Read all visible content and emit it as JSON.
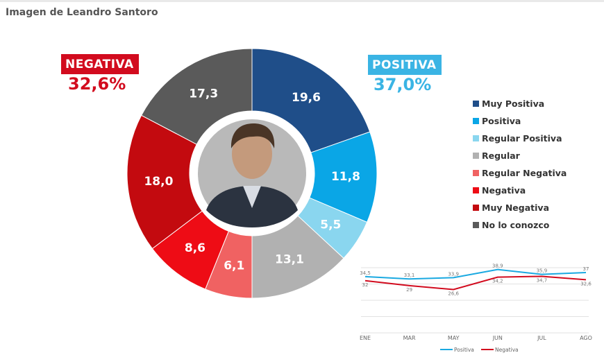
{
  "header": {
    "title": "Imagen de Leandro Santoro"
  },
  "summary": {
    "negative": {
      "label": "NEGATIVA",
      "value": "32,6%"
    },
    "positive": {
      "label": "POSITIVA",
      "value": "37,0%"
    }
  },
  "colors": {
    "muy_positiva": "#1f4e89",
    "positiva": "#0aa6e6",
    "regular_positiva": "#8ad6ef",
    "regular": "#b1b1b1",
    "regular_negativa": "#f06262",
    "negativa": "#ee0c15",
    "muy_negativa": "#c30a0f",
    "no_lo_conozco": "#5a5a5a",
    "photo_placeholder": "#b9b9b9"
  },
  "chart_data": [
    {
      "type": "pie",
      "variant": "donut",
      "slices": [
        {
          "name": "Muy Positiva",
          "value": 19.6,
          "label": "19,6",
          "color": "#1f4e89"
        },
        {
          "name": "Positiva",
          "value": 11.8,
          "label": "11,8",
          "color": "#0aa6e6"
        },
        {
          "name": "Regular Positiva",
          "value": 5.5,
          "label": "5,5",
          "color": "#8ad6ef"
        },
        {
          "name": "Regular",
          "value": 13.1,
          "label": "13,1",
          "color": "#b1b1b1"
        },
        {
          "name": "Regular Negativa",
          "value": 6.1,
          "label": "6,1",
          "color": "#f06262"
        },
        {
          "name": "Negativa",
          "value": 8.6,
          "label": "8,6",
          "color": "#ee0c15"
        },
        {
          "name": "Muy Negativa",
          "value": 18.0,
          "label": "18,0",
          "color": "#c30a0f"
        },
        {
          "name": "No lo conozco",
          "value": 17.3,
          "label": "17,3",
          "color": "#5a5a5a"
        }
      ],
      "legend": [
        "Muy Positiva",
        "Positiva",
        "Regular Positiva",
        "Regular",
        "Regular Negativa",
        "Negativa",
        "Muy Negativa",
        "No lo conozco"
      ],
      "center": "photo"
    },
    {
      "type": "line",
      "categories": [
        "ENE",
        "MAR",
        "MAY",
        "JUN",
        "JUL",
        "AGO"
      ],
      "series": [
        {
          "name": "Positiva",
          "color": "#1aa9e1",
          "values": [
            34.5,
            33.1,
            33.9,
            38.9,
            35.9,
            37
          ],
          "labels": [
            "34,5",
            "33,1",
            "33,9",
            "38,9",
            "35,9",
            "37"
          ]
        },
        {
          "name": "Negativa",
          "color": "#d20b1e",
          "values": [
            32,
            29,
            26.6,
            34.2,
            34.7,
            32.6
          ],
          "labels": [
            "32",
            "29",
            "26,6",
            "34,2",
            "34,7",
            "32,6"
          ]
        }
      ],
      "ylim": [
        0,
        40
      ],
      "grid": true,
      "legend_position": "bottom"
    }
  ]
}
